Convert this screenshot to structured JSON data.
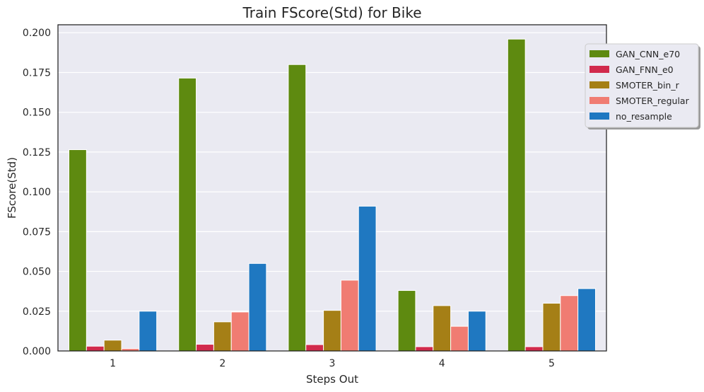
{
  "chart_data": {
    "type": "bar",
    "title": "Train FScore(Std) for Bike",
    "xlabel": "Steps Out",
    "ylabel": "FScore(Std)",
    "categories": [
      "1",
      "2",
      "3",
      "4",
      "5"
    ],
    "ylim": [
      0,
      0.205
    ],
    "yticks": [
      "0.000",
      "0.025",
      "0.050",
      "0.075",
      "0.100",
      "0.125",
      "0.150",
      "0.175",
      "0.200"
    ],
    "grid": true,
    "legend_position": "upper-right outside",
    "series": [
      {
        "name": "GAN_CNN_e70",
        "color": "#5e8a10",
        "values": [
          0.1265,
          0.1715,
          0.18,
          0.038,
          0.196
        ]
      },
      {
        "name": "GAN_FNN_e0",
        "color": "#d12a4c",
        "values": [
          0.003,
          0.0042,
          0.004,
          0.0027,
          0.0027
        ]
      },
      {
        "name": "SMOTER_bin_r",
        "color": "#a57f16",
        "values": [
          0.0068,
          0.0183,
          0.0255,
          0.0285,
          0.03
        ]
      },
      {
        "name": "SMOTER_regular",
        "color": "#f07c72",
        "values": [
          0.0015,
          0.0245,
          0.0445,
          0.0155,
          0.0348
        ]
      },
      {
        "name": "no_resample",
        "color": "#1f78c1",
        "values": [
          0.025,
          0.055,
          0.091,
          0.025,
          0.0392
        ]
      }
    ]
  }
}
